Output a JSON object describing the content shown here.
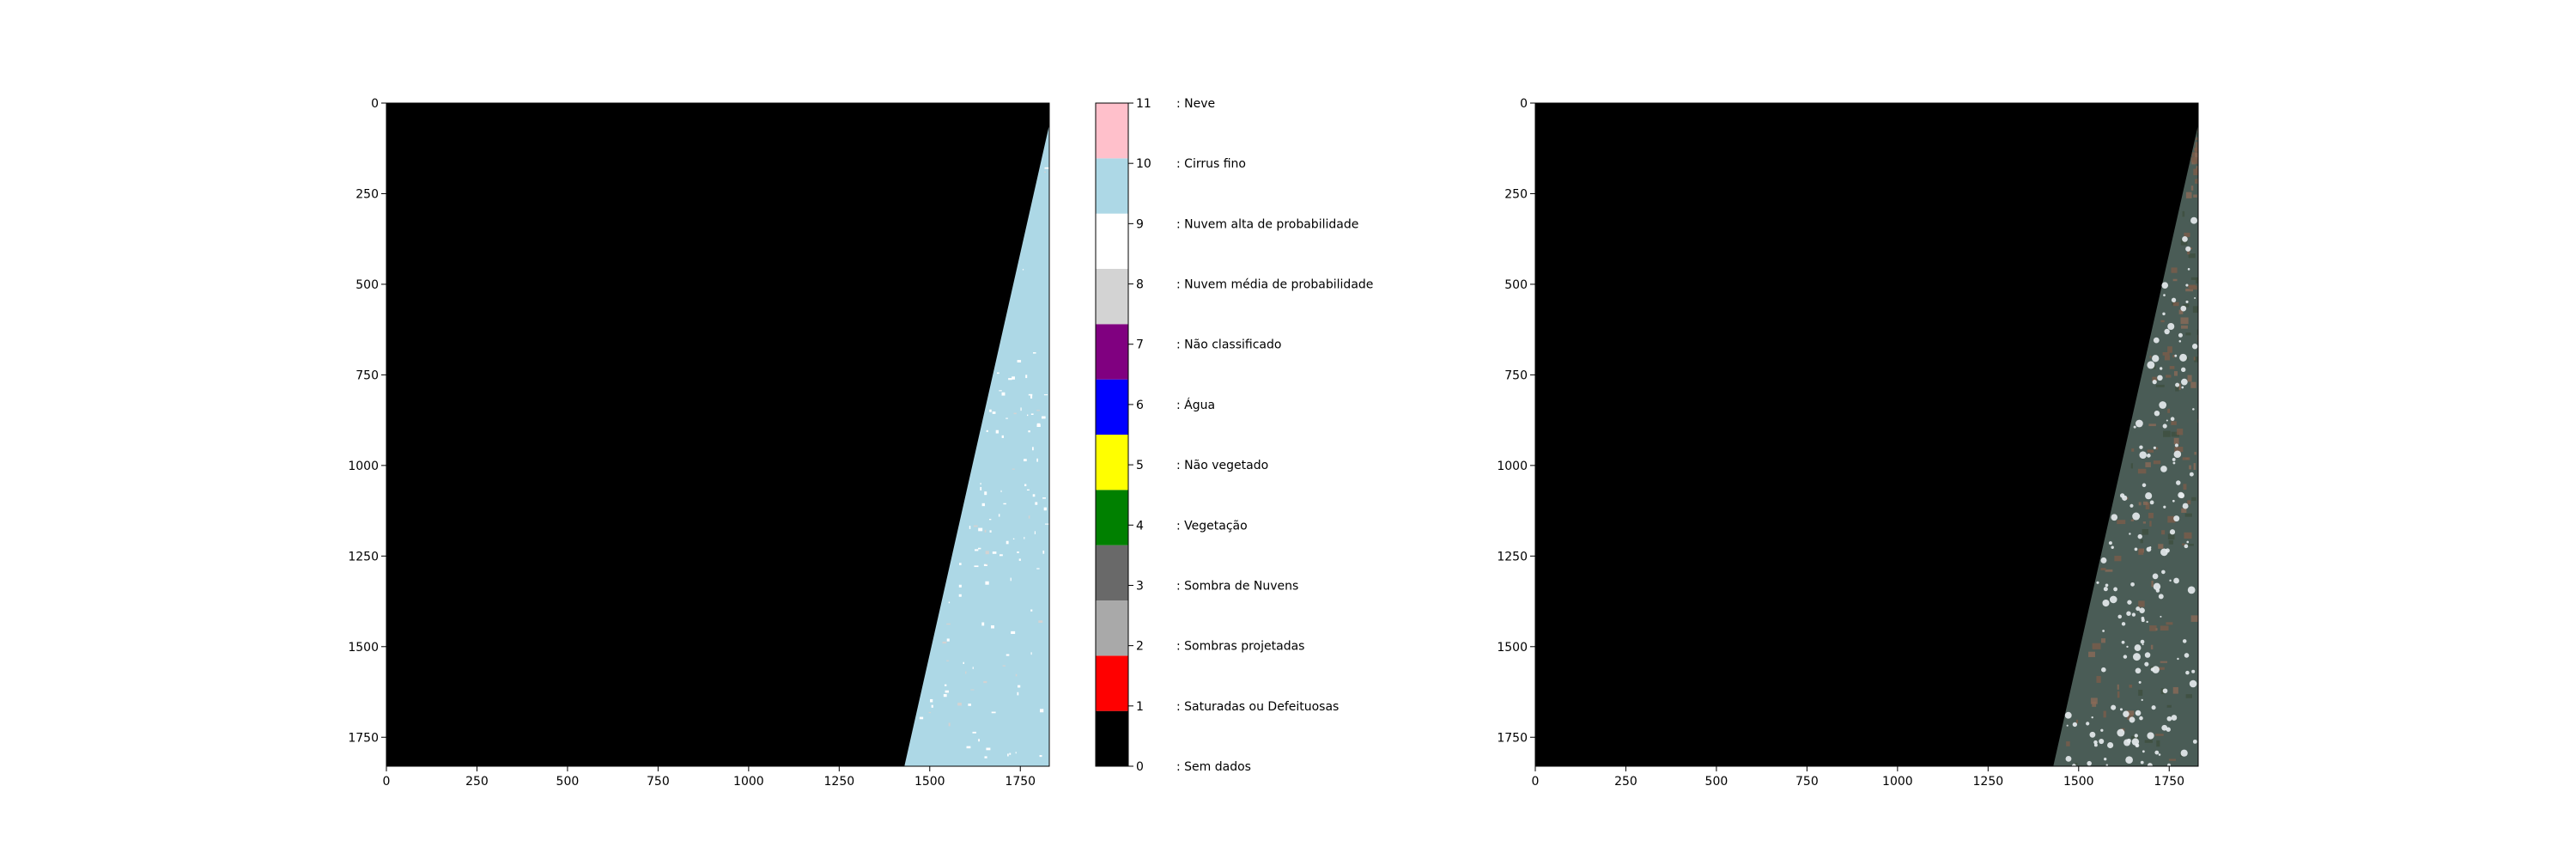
{
  "chart_data": [
    {
      "type": "heatmap",
      "title": "",
      "xlabel": "",
      "ylabel": "",
      "xlim": [
        0,
        1830
      ],
      "ylim": [
        1830,
        0
      ],
      "x_ticks": [
        0,
        250,
        500,
        750,
        1000,
        1250,
        1500,
        1750
      ],
      "y_ticks": [
        0,
        250,
        500,
        750,
        1000,
        1250,
        1500,
        1750
      ],
      "x_tick_labels": [
        "0",
        "250",
        "500",
        "750",
        "1000",
        "1250",
        "1500",
        "1750"
      ],
      "y_tick_labels": [
        "0",
        "250",
        "500",
        "750",
        "1000",
        "1250",
        "1500",
        "1750"
      ],
      "content": "Scene classification map: black no-data area with a light blue (thin cirrus) swath along the right edge, containing scattered white cloud patches",
      "swath_edge": [
        [
          1830,
          60
        ],
        [
          1430,
          1830
        ]
      ]
    },
    {
      "type": "colorbar",
      "ticks": [
        0,
        1,
        2,
        3,
        4,
        5,
        6,
        7,
        8,
        9,
        10,
        11
      ],
      "tick_labels": [
        "0",
        "1",
        "2",
        "3",
        "4",
        "5",
        "6",
        "7",
        "8",
        "9",
        "10",
        "11"
      ],
      "colors": [
        "#000000",
        "#ff0000",
        "#a9a9a9",
        "#696969",
        "#008000",
        "#ffff00",
        "#0000ff",
        "#800080",
        "#d3d3d3",
        "#ffffff",
        "#add8e6",
        "#ffc0cb"
      ],
      "labels": [
        ": Sem dados",
        ": Saturadas ou Defeituosas",
        ": Sombras projetadas",
        ": Sombra de Nuvens",
        ": Vegetação",
        ": Não vegetado",
        ": Água",
        ": Não classificado",
        ": Nuvem média de probabilidade",
        ": Nuvem alta de probabilidade",
        ": Cirrus fino",
        ": Neve"
      ]
    },
    {
      "type": "heatmap",
      "title": "",
      "xlabel": "",
      "ylabel": "",
      "xlim": [
        0,
        1830
      ],
      "ylim": [
        1830,
        0
      ],
      "x_ticks": [
        0,
        250,
        500,
        750,
        1000,
        1250,
        1500,
        1750
      ],
      "y_ticks": [
        0,
        250,
        500,
        750,
        1000,
        1250,
        1500,
        1750
      ],
      "x_tick_labels": [
        "0",
        "250",
        "500",
        "750",
        "1000",
        "1250",
        "1500",
        "1750"
      ],
      "y_tick_labels": [
        "0",
        "250",
        "500",
        "750",
        "1000",
        "1250",
        "1500",
        "1750"
      ],
      "content": "True-color satellite image: black no-data area with a swath of forest, fields and scattered cumulus clouds along the right edge",
      "swath_edge": [
        [
          1830,
          60
        ],
        [
          1430,
          1830
        ]
      ]
    }
  ]
}
